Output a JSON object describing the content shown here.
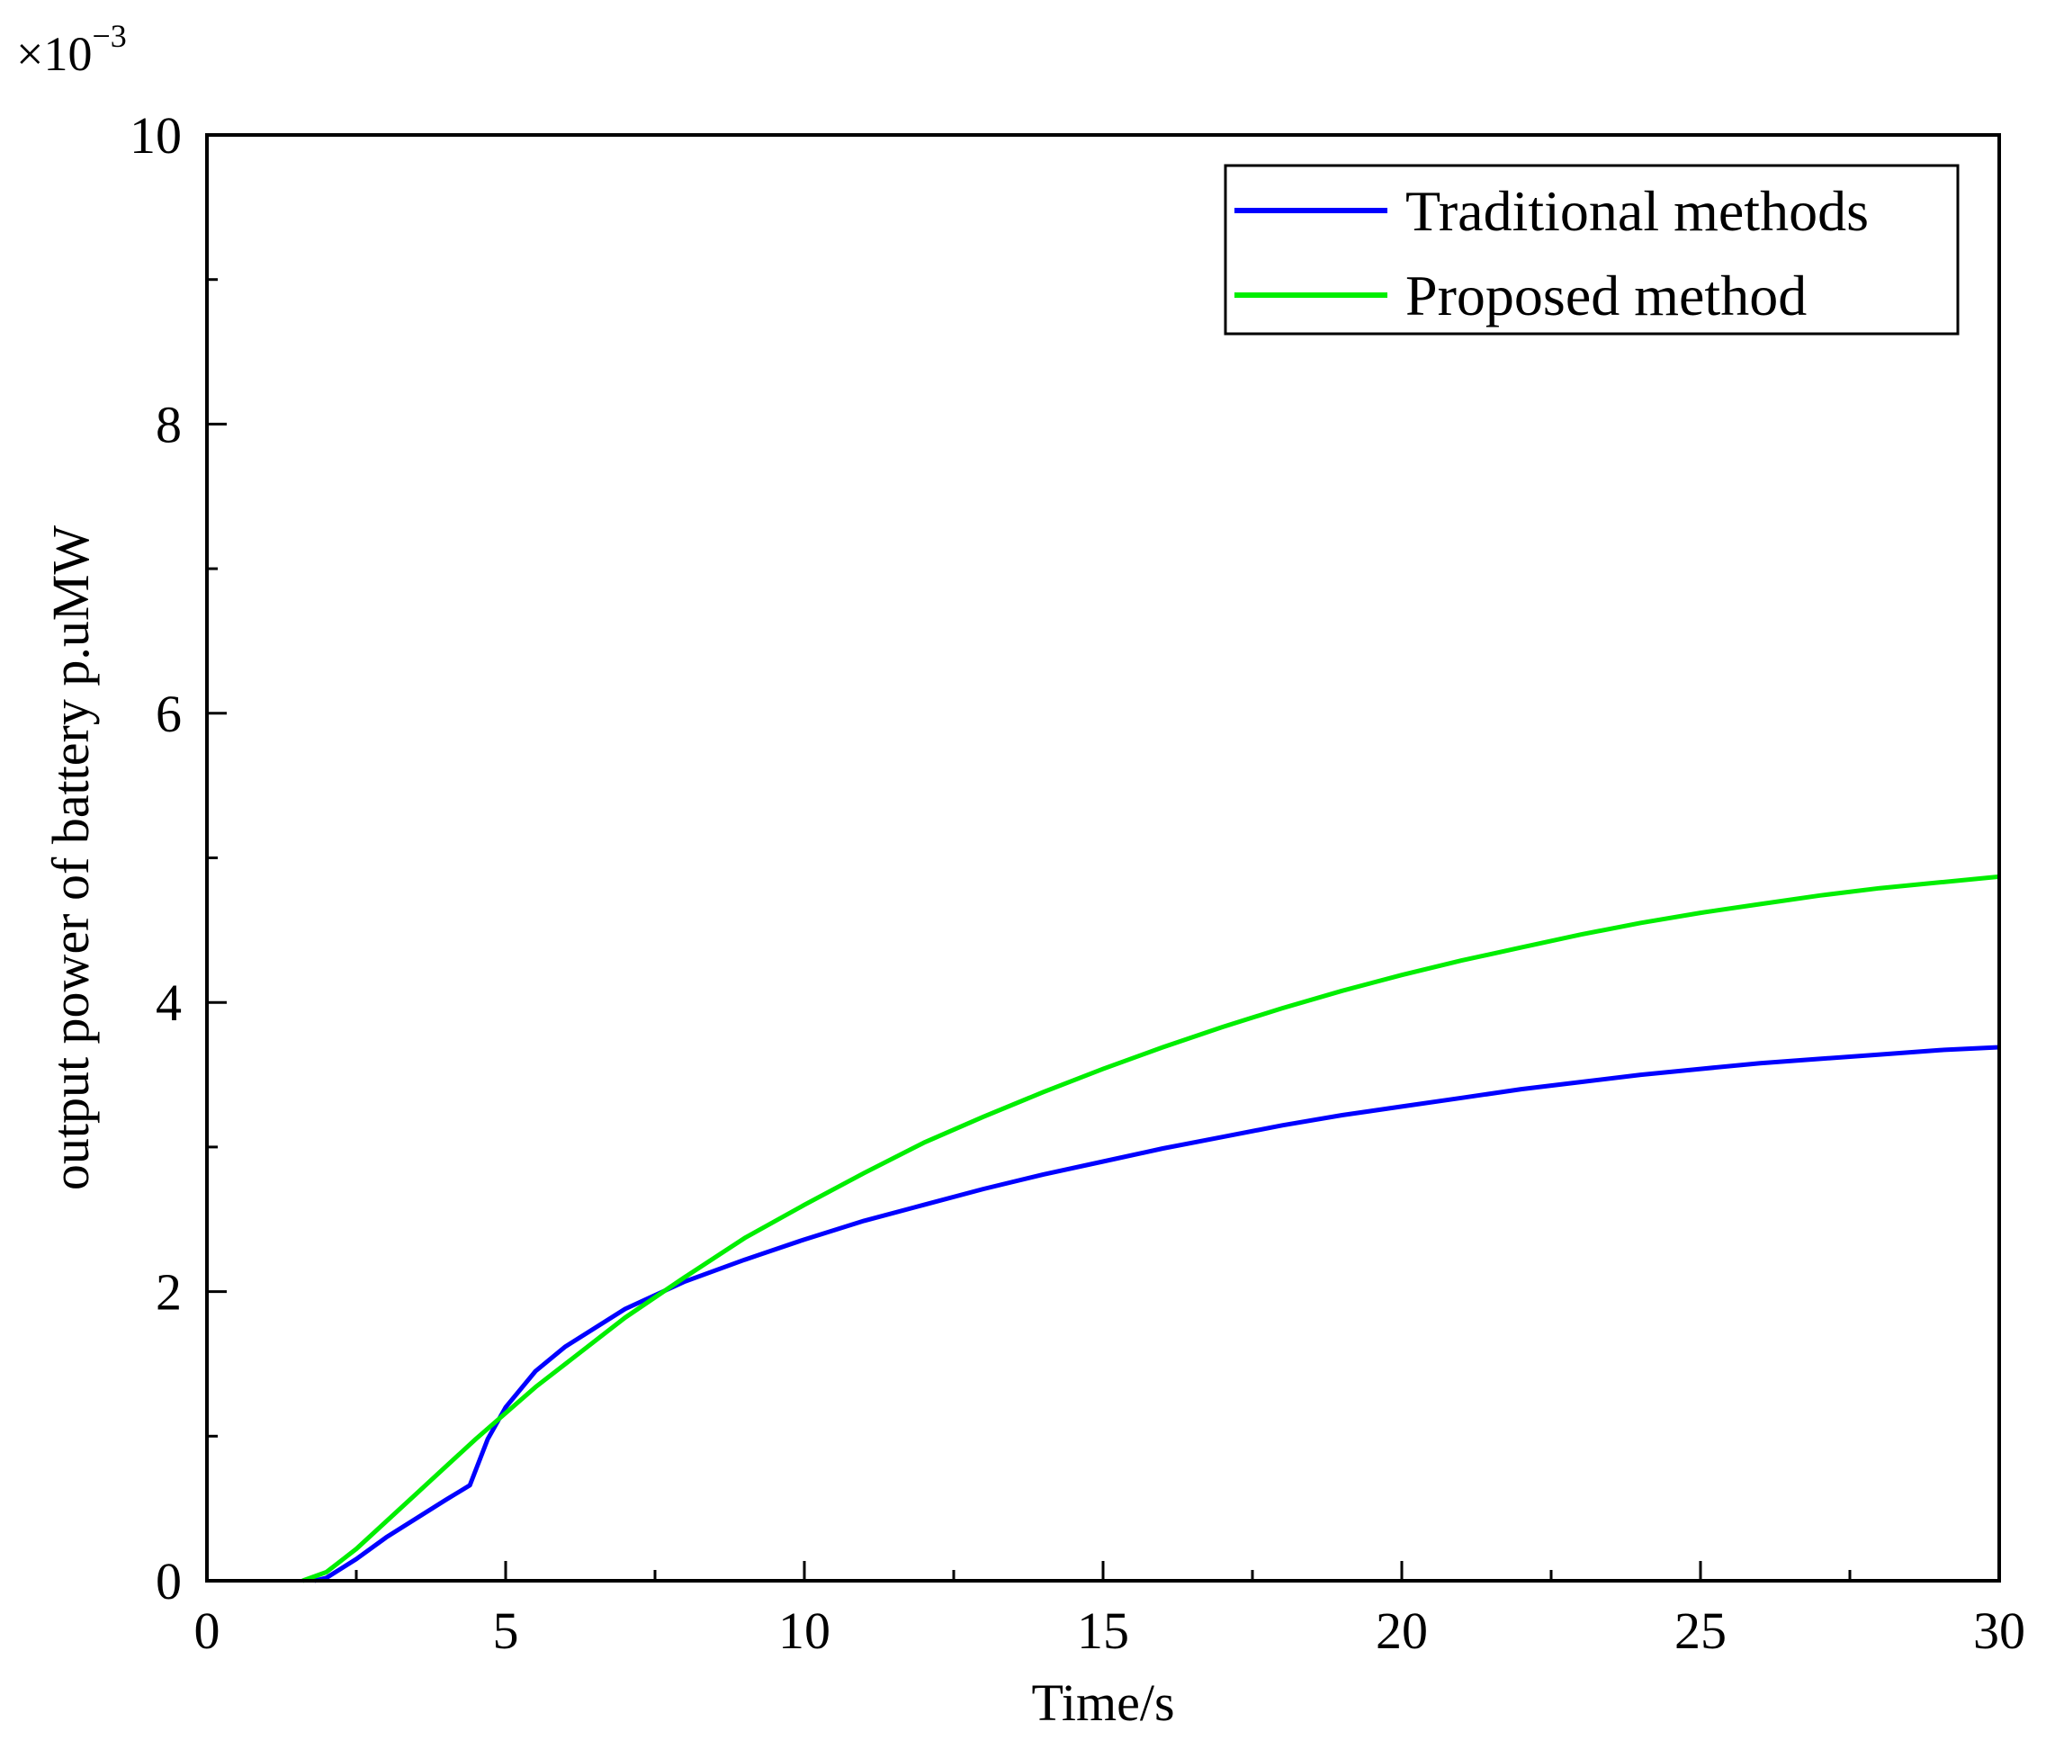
{
  "chart_data": {
    "type": "line",
    "title": "",
    "xlabel": "Time/s",
    "ylabel": "output power of battery p.uMW",
    "y_multiplier": "×10",
    "y_multiplier_exponent": "−3",
    "xlim": [
      0,
      30
    ],
    "ylim": [
      0,
      10
    ],
    "x_ticks": [
      "0",
      "5",
      "10",
      "15",
      "20",
      "25",
      "30"
    ],
    "y_ticks": [
      "0",
      "2",
      "4",
      "6",
      "8",
      "10"
    ],
    "grid": false,
    "legend_position": "top-right",
    "series": [
      {
        "name": "Traditional methods",
        "color": "#0000ff",
        "x": [
          1.8,
          2.0,
          2.5,
          3.0,
          3.5,
          4.0,
          4.4,
          4.7,
          5.0,
          5.5,
          6.0,
          7.0,
          8.0,
          9.0,
          10.0,
          11.0,
          12.0,
          13.0,
          14.0,
          15.0,
          16.0,
          17.0,
          18.0,
          19.0,
          20.0,
          21.0,
          22.0,
          23.0,
          24.0,
          25.0,
          26.0,
          27.0,
          28.0,
          29.0,
          30.0
        ],
        "y": [
          0.0,
          0.02,
          0.15,
          0.3,
          0.43,
          0.56,
          0.66,
          0.98,
          1.2,
          1.45,
          1.62,
          1.88,
          2.07,
          2.22,
          2.36,
          2.49,
          2.6,
          2.71,
          2.81,
          2.9,
          2.99,
          3.07,
          3.15,
          3.22,
          3.28,
          3.34,
          3.4,
          3.45,
          3.5,
          3.54,
          3.58,
          3.61,
          3.64,
          3.67,
          3.69
        ]
      },
      {
        "name": "Proposed method",
        "color": "#00ee00",
        "x": [
          1.6,
          2.0,
          2.5,
          3.0,
          3.5,
          4.0,
          4.5,
          5.0,
          5.5,
          6.0,
          7.0,
          8.0,
          9.0,
          10.0,
          11.0,
          12.0,
          13.0,
          14.0,
          15.0,
          16.0,
          17.0,
          18.0,
          19.0,
          20.0,
          21.0,
          22.0,
          23.0,
          24.0,
          25.0,
          26.0,
          27.0,
          28.0,
          29.0,
          30.0
        ],
        "y": [
          0.0,
          0.06,
          0.22,
          0.41,
          0.6,
          0.79,
          0.98,
          1.16,
          1.34,
          1.5,
          1.82,
          2.1,
          2.37,
          2.6,
          2.82,
          3.03,
          3.21,
          3.38,
          3.54,
          3.69,
          3.83,
          3.96,
          4.08,
          4.19,
          4.29,
          4.38,
          4.47,
          4.55,
          4.62,
          4.68,
          4.74,
          4.79,
          4.83,
          4.87
        ]
      }
    ]
  }
}
